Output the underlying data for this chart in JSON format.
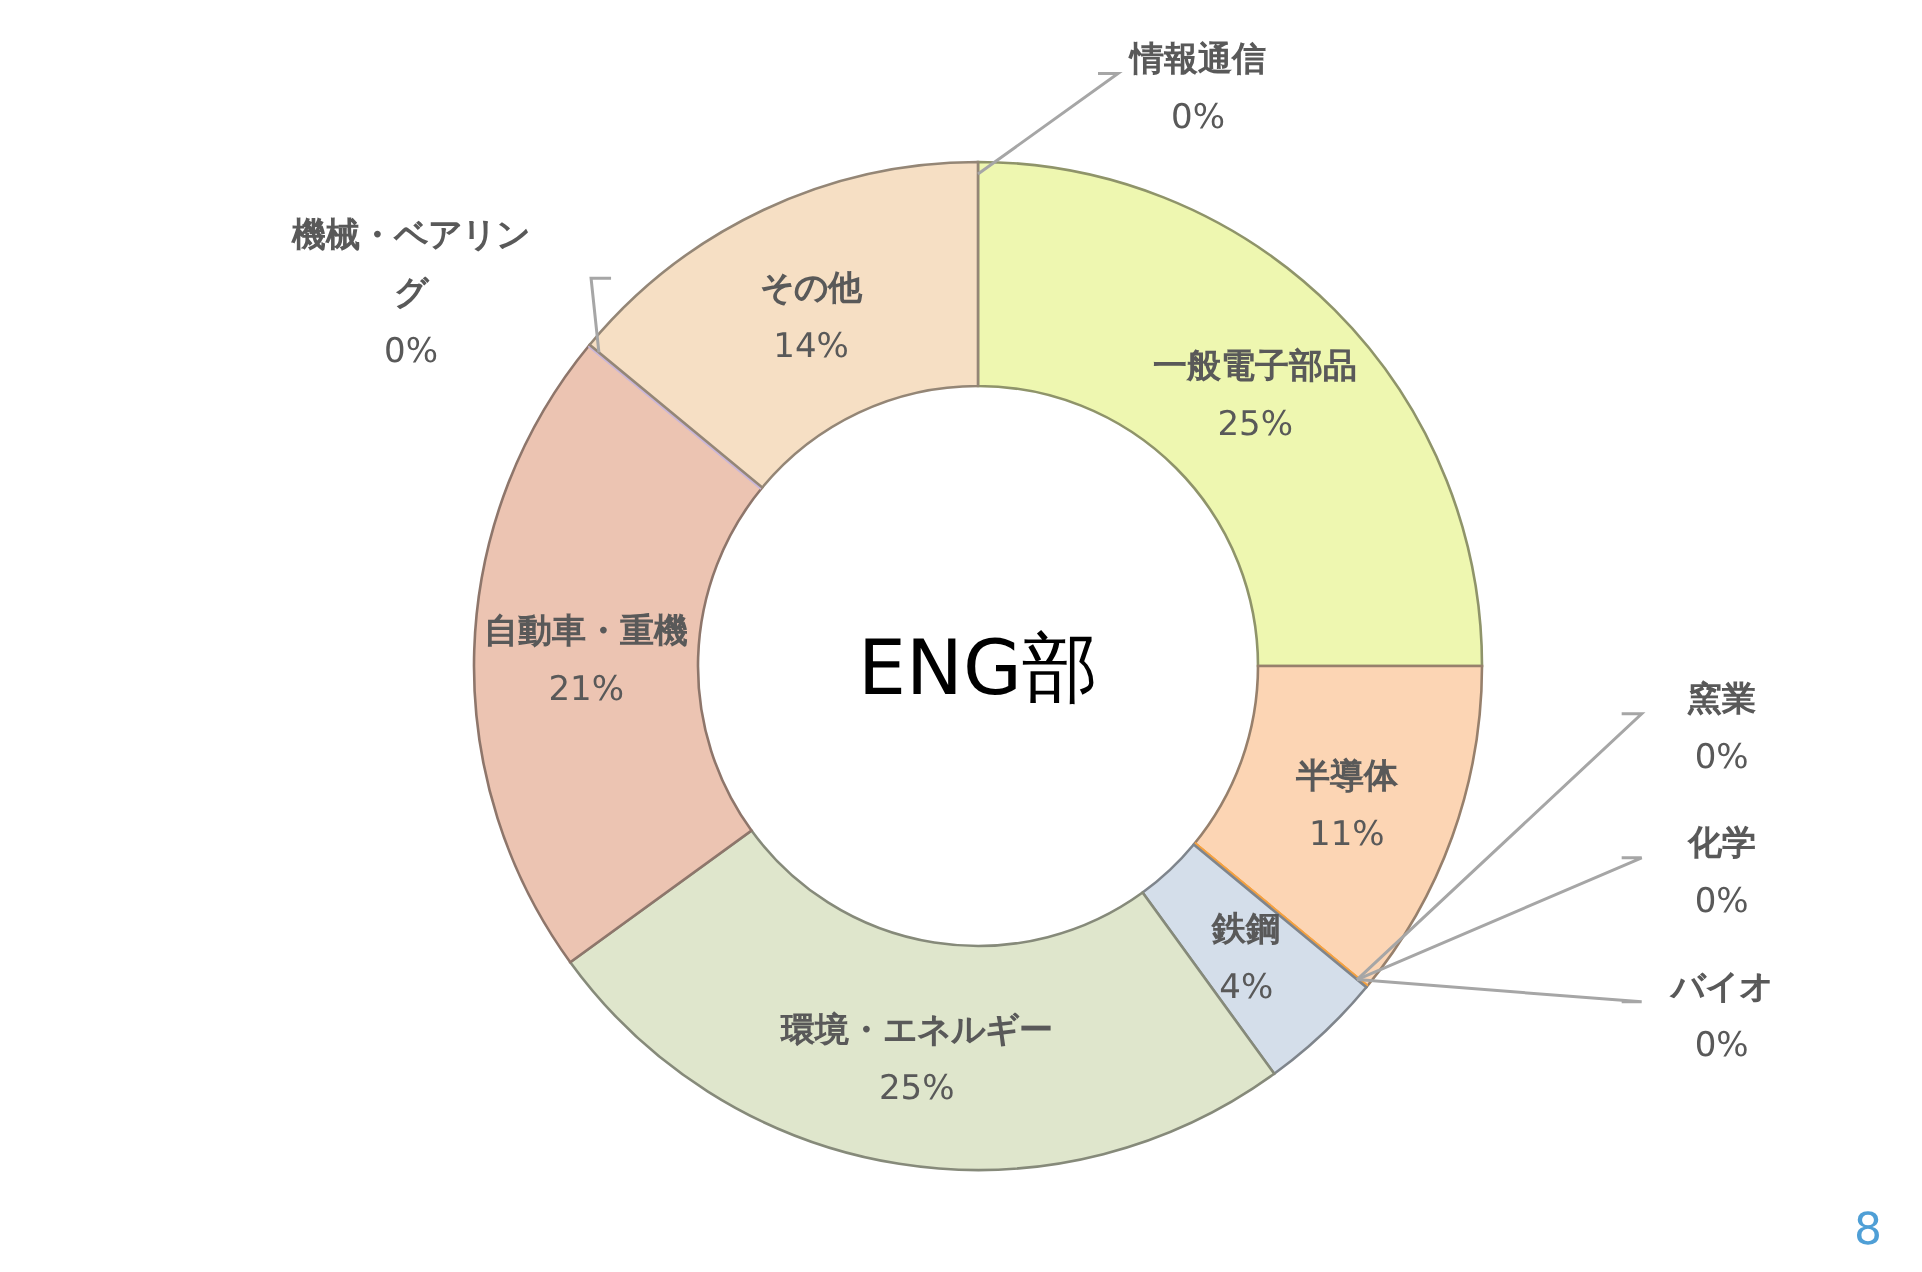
{
  "chart_data": {
    "type": "donut",
    "title": "ENG部",
    "categories": [
      "情報通信",
      "一般電子部品",
      "半導体",
      "窯業",
      "化学",
      "バイオ",
      "鉄鋼",
      "環境・エネルギー",
      "自動車・重機",
      "機械・ベアリング",
      "その他"
    ],
    "values": [
      0,
      25,
      11,
      0,
      0,
      0,
      4,
      25,
      21,
      0,
      14
    ],
    "colors": [
      "#4f81bd",
      "#eef7b0",
      "#fcd5b4",
      "#e0403a",
      "#ffd84a",
      "#f4a040",
      "#d4deea",
      "#dfe6cc",
      "#ecc4b2",
      "#c9b6d8",
      "#f6dfc4"
    ],
    "value_labels": [
      "0%",
      "25%",
      "11%",
      "0%",
      "0%",
      "0%",
      "4%",
      "25%",
      "21%",
      "0%",
      "14%"
    ],
    "annotations": [
      "8"
    ]
  }
}
